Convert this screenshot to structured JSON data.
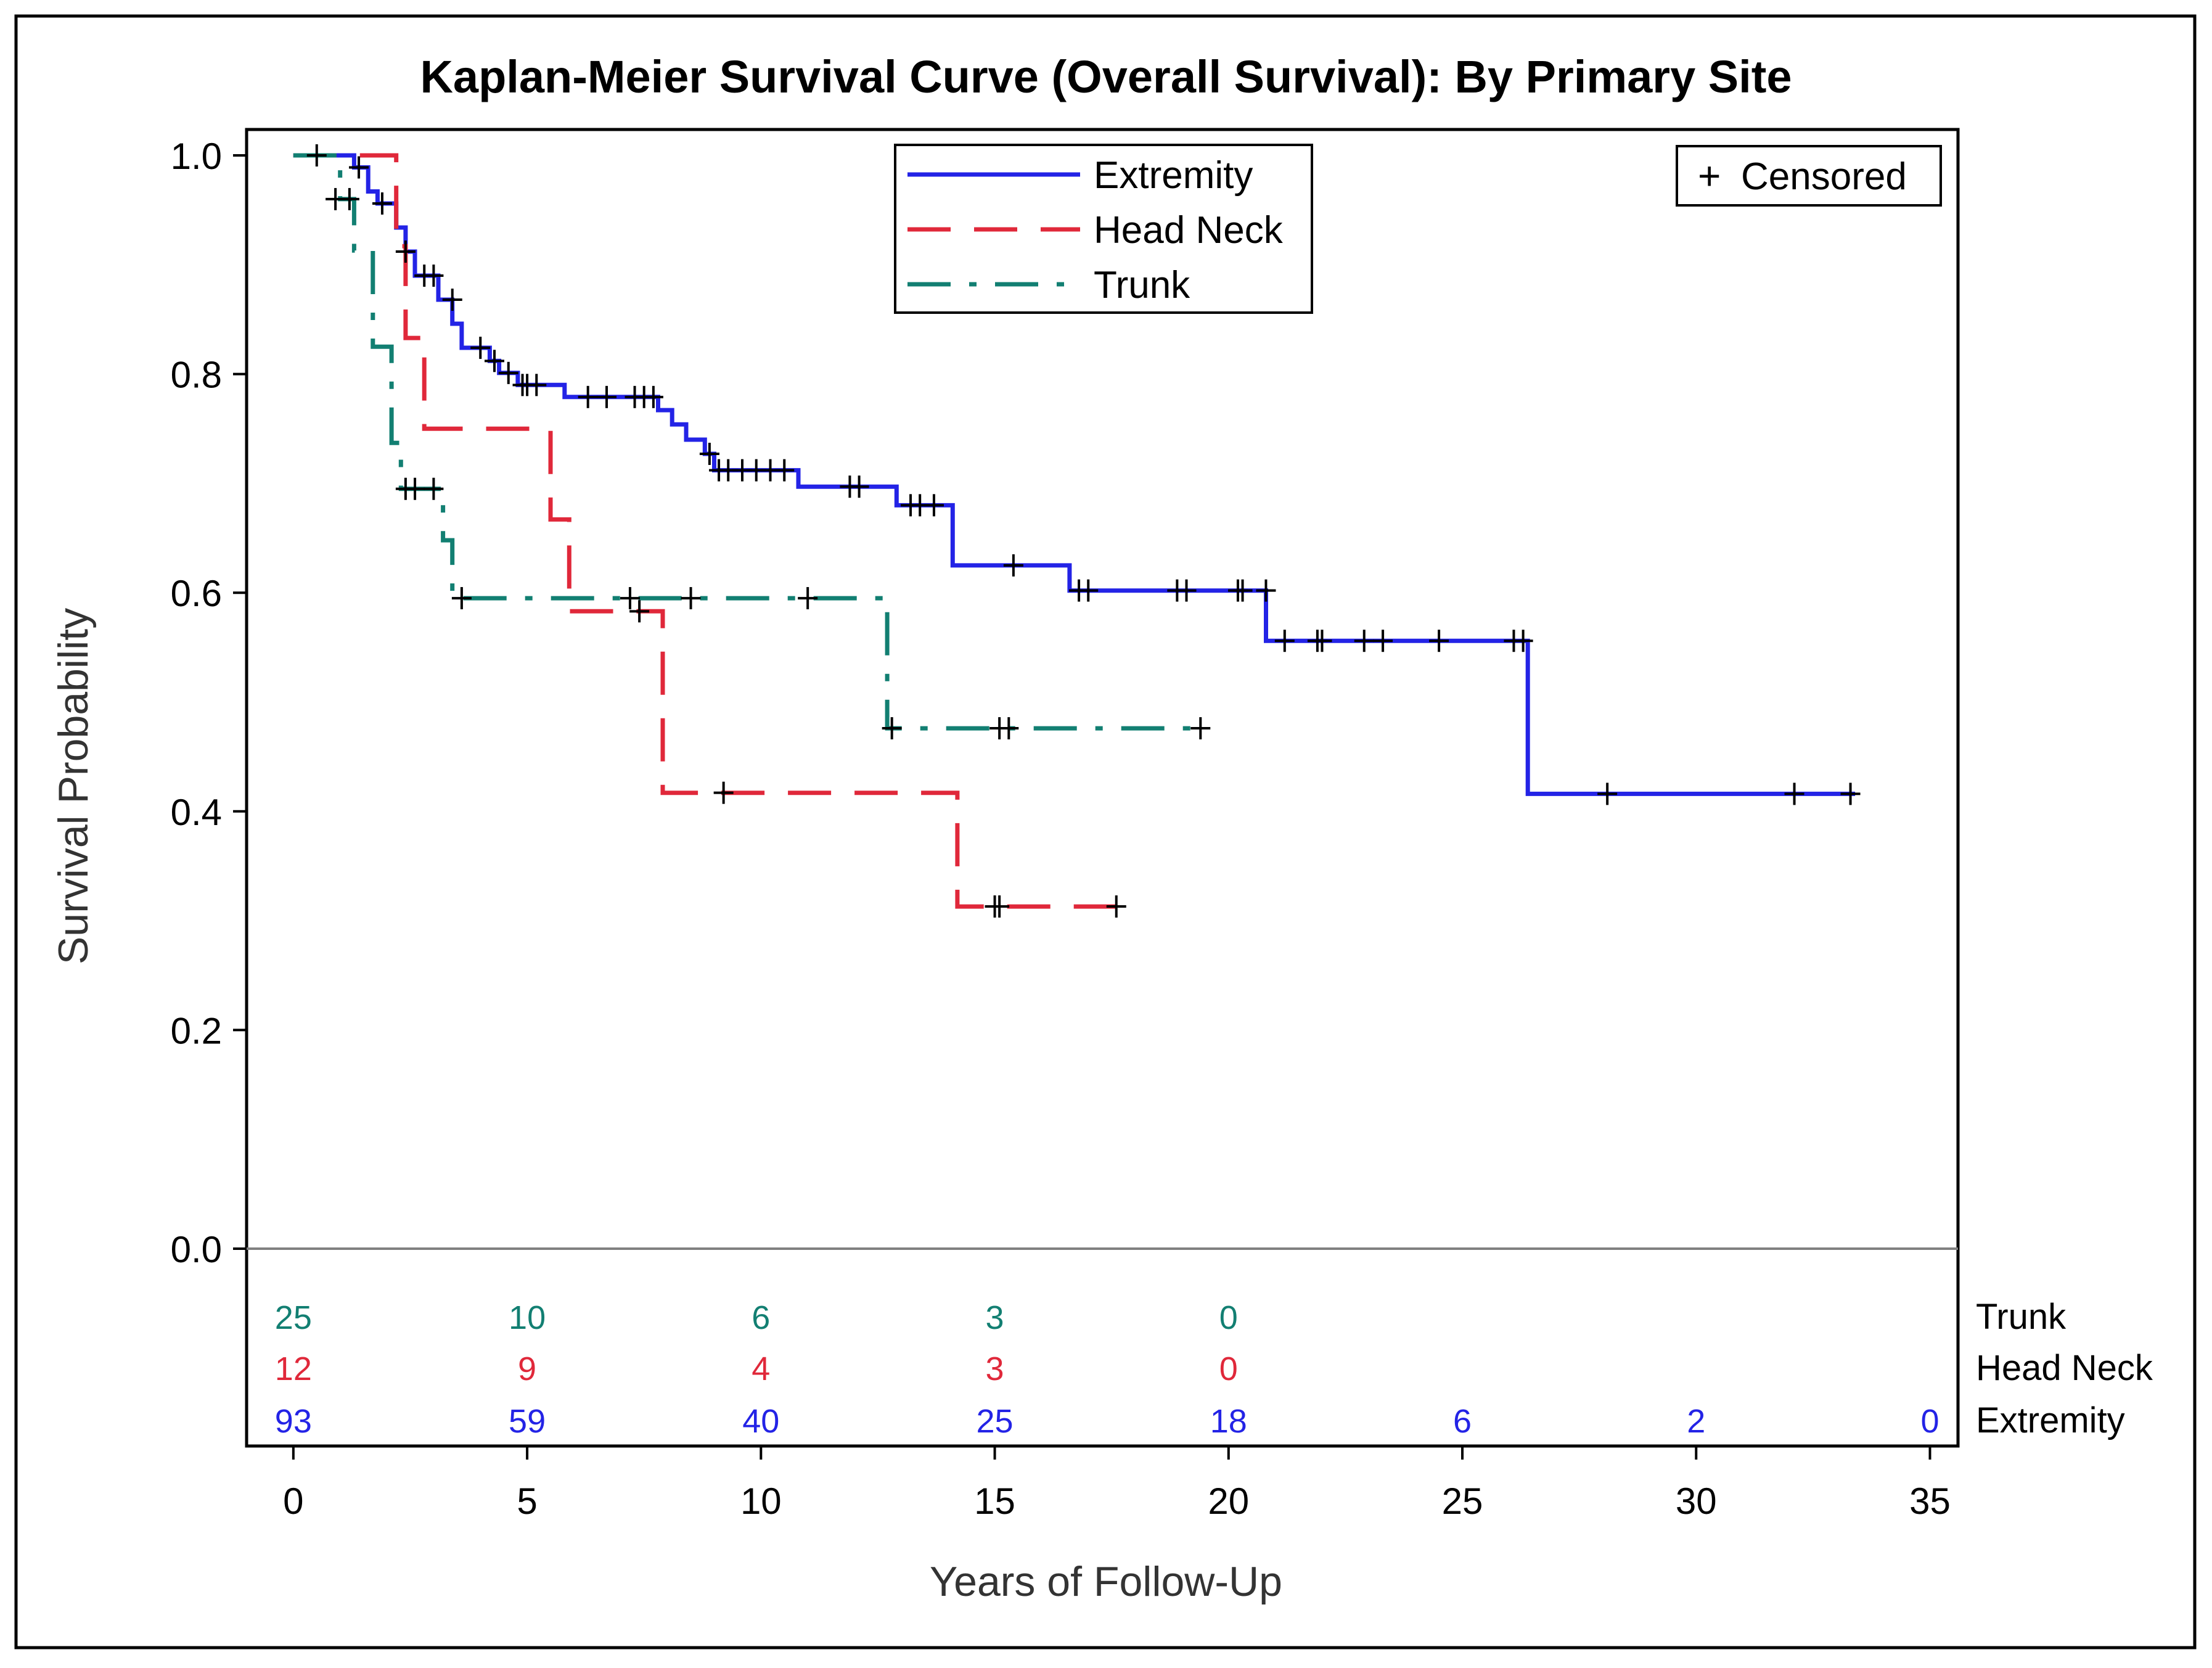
{
  "chart_data": {
    "type": "line",
    "subtype": "kaplan-meier step",
    "title": "Kaplan-Meier Survival Curve (Overall Survival): By Primary Site",
    "xlabel": "Years of Follow-Up",
    "ylabel": "Survival Probability",
    "xlim": [
      -1,
      35.6
    ],
    "ylim": [
      -0.18,
      1.0
    ],
    "xticks": [
      0,
      5,
      10,
      15,
      20,
      25,
      30,
      35
    ],
    "yticks": [
      0.0,
      0.2,
      0.4,
      0.6,
      0.8,
      1.0
    ],
    "ytick_labels": [
      "0.0",
      "0.2",
      "0.4",
      "0.6",
      "0.8",
      "1.0"
    ],
    "legend": {
      "placement": "top-center",
      "entries": [
        "Extremity",
        "Head Neck",
        "Trunk"
      ]
    },
    "censor_legend": {
      "placement": "top-right",
      "symbol": "+",
      "label": "Censored"
    },
    "series": [
      {
        "name": "Extremity",
        "color": "#2323e6",
        "dash": "solid",
        "steps": [
          [
            0,
            1.0
          ],
          [
            1.3,
            0.989
          ],
          [
            1.6,
            0.967
          ],
          [
            1.8,
            0.956
          ],
          [
            2.2,
            0.934
          ],
          [
            2.4,
            0.912
          ],
          [
            2.6,
            0.89
          ],
          [
            3.1,
            0.868
          ],
          [
            3.4,
            0.846
          ],
          [
            3.6,
            0.824
          ],
          [
            4.2,
            0.812
          ],
          [
            4.4,
            0.801
          ],
          [
            4.8,
            0.79
          ],
          [
            5.8,
            0.779
          ],
          [
            7.8,
            0.767
          ],
          [
            8.1,
            0.754
          ],
          [
            8.4,
            0.74
          ],
          [
            8.8,
            0.727
          ],
          [
            9.0,
            0.712
          ],
          [
            10.8,
            0.697
          ],
          [
            12.9,
            0.68
          ],
          [
            14.1,
            0.625
          ],
          [
            16.6,
            0.602
          ],
          [
            20.8,
            0.556
          ],
          [
            26.4,
            0.416
          ],
          [
            33.4,
            0.416
          ]
        ],
        "censored": [
          [
            0.5,
            1.0
          ],
          [
            1.4,
            0.989
          ],
          [
            1.9,
            0.956
          ],
          [
            2.4,
            0.912
          ],
          [
            2.8,
            0.89
          ],
          [
            3.0,
            0.89
          ],
          [
            3.4,
            0.868
          ],
          [
            4.0,
            0.824
          ],
          [
            4.3,
            0.812
          ],
          [
            4.6,
            0.801
          ],
          [
            4.9,
            0.79
          ],
          [
            5.0,
            0.79
          ],
          [
            5.2,
            0.79
          ],
          [
            6.3,
            0.779
          ],
          [
            6.7,
            0.779
          ],
          [
            7.3,
            0.779
          ],
          [
            7.5,
            0.779
          ],
          [
            7.7,
            0.779
          ],
          [
            8.9,
            0.727
          ],
          [
            9.1,
            0.712
          ],
          [
            9.3,
            0.712
          ],
          [
            9.6,
            0.712
          ],
          [
            9.9,
            0.712
          ],
          [
            10.2,
            0.712
          ],
          [
            10.5,
            0.712
          ],
          [
            11.9,
            0.697
          ],
          [
            12.1,
            0.697
          ],
          [
            13.2,
            0.68
          ],
          [
            13.4,
            0.68
          ],
          [
            13.7,
            0.68
          ],
          [
            15.4,
            0.625
          ],
          [
            16.8,
            0.602
          ],
          [
            17.0,
            0.602
          ],
          [
            18.9,
            0.602
          ],
          [
            19.1,
            0.602
          ],
          [
            20.2,
            0.602
          ],
          [
            20.3,
            0.602
          ],
          [
            20.8,
            0.602
          ],
          [
            21.2,
            0.556
          ],
          [
            21.9,
            0.556
          ],
          [
            22.0,
            0.556
          ],
          [
            22.9,
            0.556
          ],
          [
            23.3,
            0.556
          ],
          [
            24.5,
            0.556
          ],
          [
            26.1,
            0.556
          ],
          [
            26.3,
            0.556
          ],
          [
            28.1,
            0.416
          ],
          [
            32.1,
            0.416
          ],
          [
            33.3,
            0.416
          ]
        ]
      },
      {
        "name": "Head Neck",
        "color": "#e0283a",
        "dash": "dashed",
        "steps": [
          [
            0,
            1.0
          ],
          [
            2.2,
            0.917
          ],
          [
            2.4,
            0.833
          ],
          [
            2.8,
            0.75
          ],
          [
            5.5,
            0.667
          ],
          [
            5.9,
            0.583
          ],
          [
            7.9,
            0.417
          ],
          [
            14.2,
            0.313
          ],
          [
            17.6,
            0.313
          ]
        ],
        "censored": [
          [
            7.4,
            0.583
          ],
          [
            9.2,
            0.417
          ],
          [
            15.0,
            0.313
          ],
          [
            15.1,
            0.313
          ],
          [
            17.6,
            0.313
          ]
        ]
      },
      {
        "name": "Trunk",
        "color": "#127f72",
        "dash": "dashdot",
        "steps": [
          [
            0,
            1.0
          ],
          [
            1.0,
            0.96
          ],
          [
            1.3,
            0.913
          ],
          [
            1.7,
            0.825
          ],
          [
            2.1,
            0.737
          ],
          [
            2.3,
            0.695
          ],
          [
            3.2,
            0.648
          ],
          [
            3.4,
            0.595
          ],
          [
            12.7,
            0.476
          ],
          [
            19.4,
            0.476
          ]
        ],
        "censored": [
          [
            0.9,
            0.96
          ],
          [
            1.2,
            0.96
          ],
          [
            2.4,
            0.695
          ],
          [
            2.6,
            0.695
          ],
          [
            3.0,
            0.695
          ],
          [
            3.6,
            0.595
          ],
          [
            7.2,
            0.595
          ],
          [
            8.5,
            0.595
          ],
          [
            11.0,
            0.595
          ],
          [
            12.8,
            0.476
          ],
          [
            15.1,
            0.476
          ],
          [
            15.3,
            0.476
          ],
          [
            19.4,
            0.476
          ]
        ]
      }
    ],
    "risk_table": {
      "times": [
        0,
        5,
        10,
        15,
        20,
        25,
        30,
        35
      ],
      "rows": [
        {
          "name": "Trunk",
          "color": "#127f72",
          "counts": [
            "25",
            "10",
            "6",
            "3",
            "0",
            null,
            null,
            null
          ]
        },
        {
          "name": "Head Neck",
          "color": "#e0283a",
          "counts": [
            "12",
            "9",
            "4",
            "3",
            "0",
            null,
            null,
            null
          ]
        },
        {
          "name": "Extremity",
          "color": "#2323e6",
          "counts": [
            "93",
            "59",
            "40",
            "25",
            "18",
            "6",
            "2",
            "0"
          ]
        }
      ]
    }
  }
}
